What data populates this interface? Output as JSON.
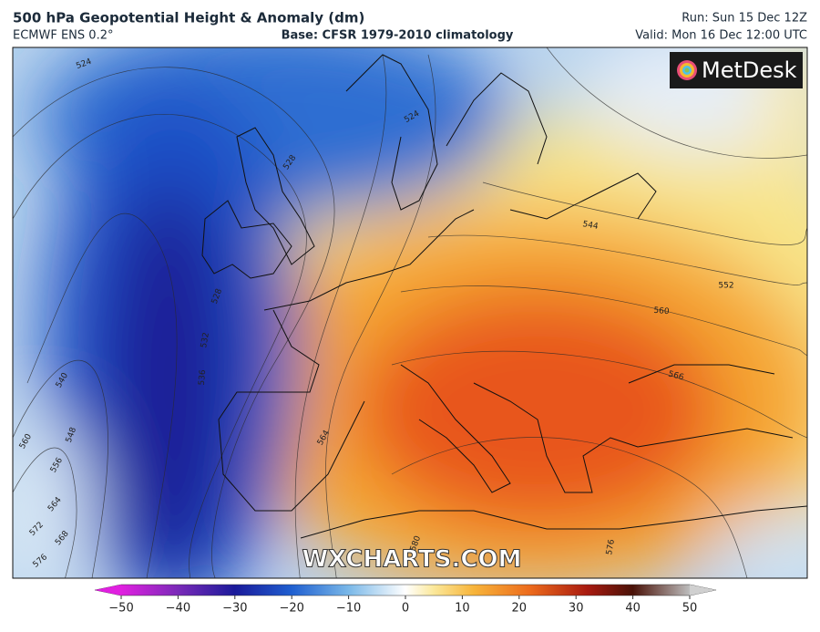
{
  "header": {
    "title": "500 hPa Geopotential Height & Anomaly (dm)",
    "model": "ECMWF ENS 0.2°",
    "base": "Base: CFSR 1979-2010 climatology",
    "run": "Run: Sun 15 Dec 12Z",
    "valid": "Valid: Mon 16 Dec 12:00 UTC"
  },
  "logo": "MetDesk",
  "watermark": "WXCHARTS.COM",
  "contour_labels": [
    "524",
    "524",
    "528",
    "532",
    "536",
    "540",
    "548",
    "556",
    "560",
    "564",
    "568",
    "572",
    "576",
    "564",
    "544",
    "552",
    "560",
    "566",
    "580",
    "576",
    "528"
  ],
  "colorbar": {
    "ticks": [
      {
        "value": -50,
        "label": "−50"
      },
      {
        "value": -40,
        "label": "−40"
      },
      {
        "value": -30,
        "label": "−30"
      },
      {
        "value": -20,
        "label": "−20"
      },
      {
        "value": -10,
        "label": "−10"
      },
      0,
      10,
      20,
      30,
      40,
      50
    ],
    "lim": [
      -50,
      50
    ]
  }
}
